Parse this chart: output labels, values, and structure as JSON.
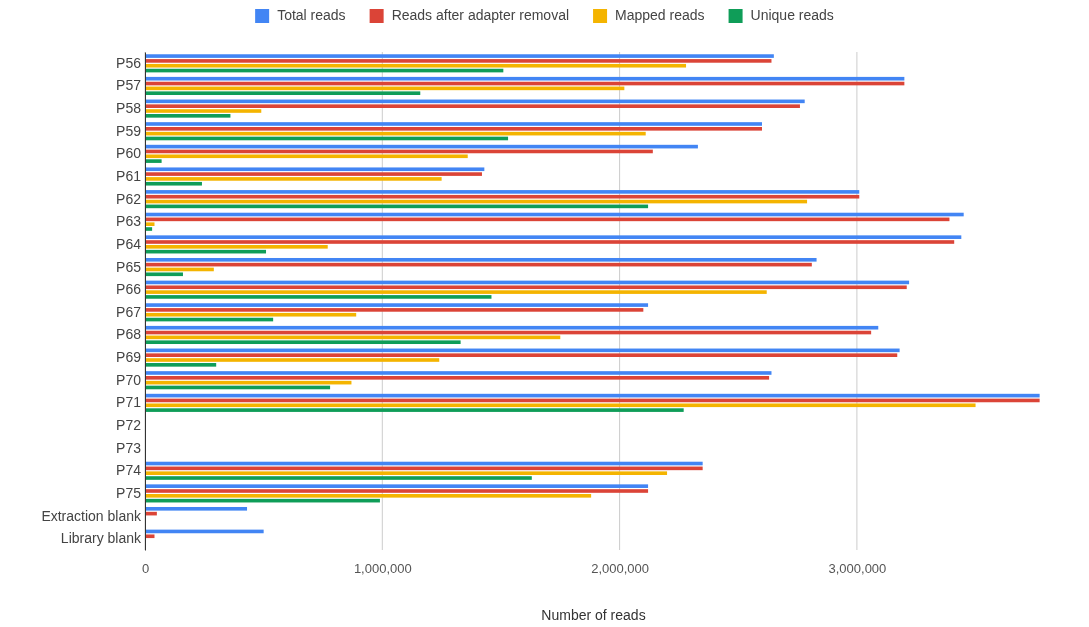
{
  "chart_data": {
    "type": "bar",
    "orientation": "horizontal",
    "xlabel": "Number of reads",
    "categories": [
      "P56",
      "P57",
      "P58",
      "P59",
      "P60",
      "P61",
      "P62",
      "P63",
      "P64",
      "P65",
      "P66",
      "P67",
      "P68",
      "P69",
      "P70",
      "P71",
      "P72",
      "P73",
      "P74",
      "P75",
      "Extraction blank",
      "Library blank"
    ],
    "series": [
      {
        "name": "Total reads",
        "color": "#4285f4",
        "values": [
          2650000,
          3200000,
          2780000,
          2600000,
          2330000,
          1430000,
          3010000,
          3450000,
          3440000,
          2830000,
          3220000,
          2120000,
          3090000,
          3180000,
          2640000,
          3770000,
          null,
          null,
          2350000,
          2120000,
          430000,
          500000
        ]
      },
      {
        "name": "Reads after adapter removal",
        "color": "#db4437",
        "values": [
          2640000,
          3200000,
          2760000,
          2600000,
          2140000,
          1420000,
          3010000,
          3390000,
          3410000,
          2810000,
          3210000,
          2100000,
          3060000,
          3170000,
          2630000,
          3770000,
          null,
          null,
          2350000,
          2120000,
          50000,
          40000
        ]
      },
      {
        "name": "Mapped reads",
        "color": "#f4b400",
        "values": [
          2280000,
          2020000,
          490000,
          2110000,
          1360000,
          1250000,
          2790000,
          40000,
          770000,
          290000,
          2620000,
          890000,
          1750000,
          1240000,
          870000,
          3500000,
          null,
          null,
          2200000,
          1880000,
          null,
          null
        ]
      },
      {
        "name": "Unique reads",
        "color": "#0f9d58",
        "values": [
          1510000,
          1160000,
          360000,
          1530000,
          70000,
          240000,
          2120000,
          30000,
          510000,
          160000,
          1460000,
          540000,
          1330000,
          300000,
          780000,
          2270000,
          null,
          null,
          1630000,
          990000,
          null,
          null
        ]
      }
    ],
    "xlim": [
      0,
      3780000
    ],
    "xticks": [
      {
        "value": 0,
        "label": "0"
      },
      {
        "value": 1000000,
        "label": "1,000,000"
      },
      {
        "value": 2000000,
        "label": "2,000,000"
      },
      {
        "value": 3000000,
        "label": "3,000,000"
      }
    ],
    "grid": "x",
    "legend": "top"
  }
}
